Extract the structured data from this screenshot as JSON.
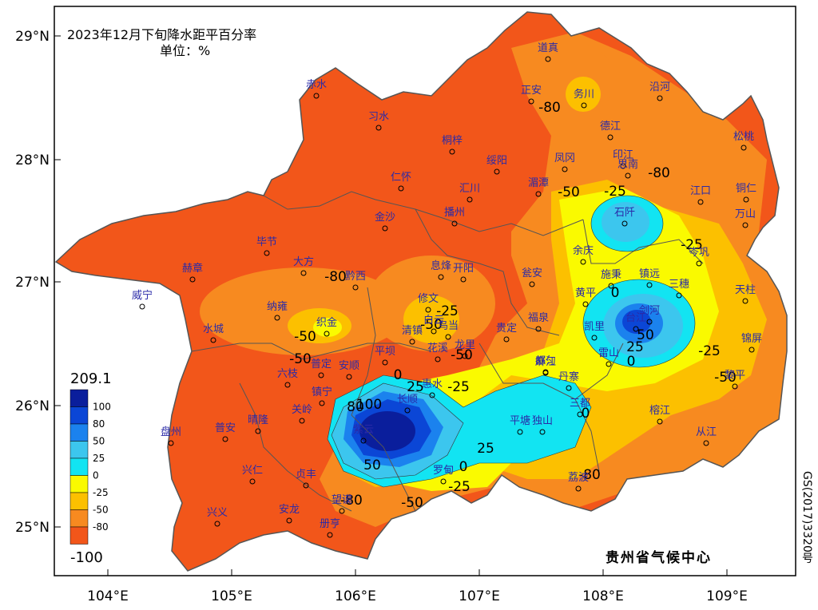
{
  "title": "2023年12月下旬降水距平百分率",
  "unit_label": "单位：%",
  "agency": "贵州省气候中心",
  "map_code": "GS(2017)3320号",
  "axes": {
    "lat_labels": [
      "29°N",
      "28°N",
      "27°N",
      "26°N",
      "25°N"
    ],
    "lon_labels": [
      "104°E",
      "105°E",
      "106°E",
      "107°E",
      "108°E",
      "109°E"
    ]
  },
  "legend": {
    "max_label": "209.1",
    "min_label": "-100",
    "levels": [
      "100",
      "80",
      "50",
      "25",
      "0",
      "-25",
      "-50",
      "-80"
    ],
    "colors": [
      "#0a1e9c",
      "#0b46d6",
      "#1b82ee",
      "#3cc6ee",
      "#12e4f2",
      "#fafa00",
      "#fcc000",
      "#f78a20",
      "#f2561a"
    ]
  },
  "contour_labels": [
    "-80",
    "-80",
    "-80",
    "-80",
    "-80",
    "-50",
    "-50",
    "-50",
    "-50",
    "-50",
    "-50",
    "-25",
    "-25",
    "-25",
    "-25",
    "-25",
    "0",
    "0",
    "0",
    "0",
    "0",
    "25",
    "25",
    "25",
    "50",
    "50",
    "80",
    "100",
    "-25",
    "-50"
  ],
  "stations": [
    {
      "name": "赤水"
    },
    {
      "name": "习水"
    },
    {
      "name": "桐梓"
    },
    {
      "name": "正安"
    },
    {
      "name": "道真"
    },
    {
      "name": "务川"
    },
    {
      "name": "沿河"
    },
    {
      "name": "德江"
    },
    {
      "name": "绥阳"
    },
    {
      "name": "凤冈"
    },
    {
      "name": "印江"
    },
    {
      "name": "思南"
    },
    {
      "name": "松桃"
    },
    {
      "name": "仁怀"
    },
    {
      "name": "汇川"
    },
    {
      "name": "湄潭"
    },
    {
      "name": "江口"
    },
    {
      "name": "铜仁"
    },
    {
      "name": "金沙"
    },
    {
      "name": "播州"
    },
    {
      "name": "石阡"
    },
    {
      "name": "万山"
    },
    {
      "name": "毕节"
    },
    {
      "name": "大方"
    },
    {
      "name": "赫章"
    },
    {
      "name": "黔西"
    },
    {
      "name": "息烽"
    },
    {
      "name": "开阳"
    },
    {
      "name": "瓮安"
    },
    {
      "name": "余庆"
    },
    {
      "name": "施秉"
    },
    {
      "name": "镇远"
    },
    {
      "name": "岑巩"
    },
    {
      "name": "威宁"
    },
    {
      "name": "纳雍"
    },
    {
      "name": "织金"
    },
    {
      "name": "修文"
    },
    {
      "name": "黄平"
    },
    {
      "name": "三穗"
    },
    {
      "name": "天柱"
    },
    {
      "name": "水城"
    },
    {
      "name": "清镇"
    },
    {
      "name": "白云"
    },
    {
      "name": "乌当"
    },
    {
      "name": "福泉"
    },
    {
      "name": "贵定"
    },
    {
      "name": "凯里"
    },
    {
      "name": "台江"
    },
    {
      "name": "剑河"
    },
    {
      "name": "锦屏"
    },
    {
      "name": "平坝"
    },
    {
      "name": "花溪"
    },
    {
      "name": "龙里"
    },
    {
      "name": "麻江"
    },
    {
      "name": "雷山"
    },
    {
      "name": "普定"
    },
    {
      "name": "安顺"
    },
    {
      "name": "六枝"
    },
    {
      "name": "都匀"
    },
    {
      "name": "丹寨"
    },
    {
      "name": "黎平"
    },
    {
      "name": "镇宁"
    },
    {
      "name": "长顺"
    },
    {
      "name": "惠水"
    },
    {
      "name": "关岭"
    },
    {
      "name": "三都"
    },
    {
      "name": "盘州"
    },
    {
      "name": "普安"
    },
    {
      "name": "晴隆"
    },
    {
      "name": "紫云"
    },
    {
      "name": "平塘"
    },
    {
      "name": "独山"
    },
    {
      "name": "榕江"
    },
    {
      "name": "从江"
    },
    {
      "name": "兴仁"
    },
    {
      "name": "贞丰"
    },
    {
      "name": "罗甸"
    },
    {
      "name": "荔波"
    },
    {
      "name": "望谟"
    },
    {
      "name": "安龙"
    },
    {
      "name": "兴义"
    },
    {
      "name": "册亨"
    }
  ]
}
